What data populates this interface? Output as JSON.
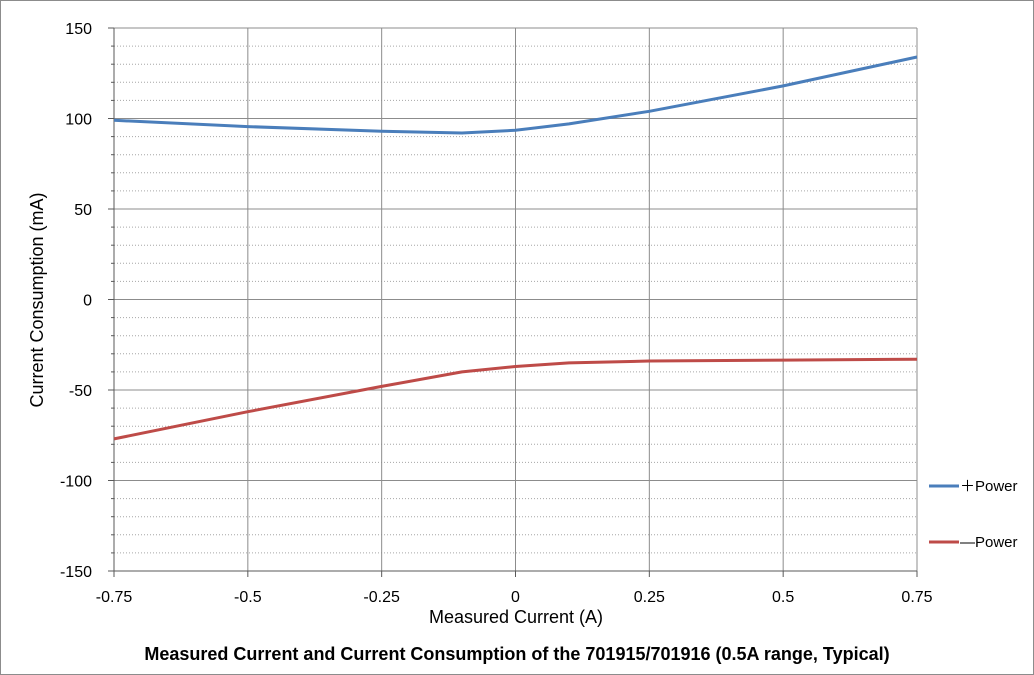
{
  "chart_data": {
    "type": "line",
    "title": "Measured Current and Current Consumption of the 701915/701916 (0.5A range, Typical)",
    "xlabel": "Measured Current (A)",
    "ylabel": "Current Consumption (mA)",
    "xlim": [
      -0.75,
      0.75
    ],
    "ylim": [
      -150,
      150
    ],
    "x_ticks": [
      -0.75,
      -0.5,
      -0.25,
      0,
      0.25,
      0.5,
      0.75
    ],
    "x_tick_labels": [
      "-0.75",
      "-0.5",
      "-0.25",
      "0",
      "0.25",
      "0.5",
      "0.75"
    ],
    "y_ticks": [
      150,
      100,
      50,
      0,
      -50,
      -100,
      -150
    ],
    "y_tick_labels": [
      "150",
      "100",
      "50",
      "0",
      "-50",
      "-100",
      "-150"
    ],
    "y_minor_step": 10,
    "grid": true,
    "legend_position": "right",
    "series": [
      {
        "name": "＋Power",
        "color": "#4a7ebb",
        "x": [
          -0.75,
          -0.5,
          -0.25,
          -0.1,
          0,
          0.1,
          0.25,
          0.5,
          0.75
        ],
        "y": [
          99,
          95.5,
          93,
          92,
          93.5,
          97,
          104,
          118,
          134
        ]
      },
      {
        "name": "—Power",
        "color": "#be4b48",
        "x": [
          -0.75,
          -0.5,
          -0.25,
          -0.1,
          0,
          0.1,
          0.25,
          0.5,
          0.75
        ],
        "y": [
          -77,
          -62,
          -48,
          -40,
          -37,
          -35,
          -34,
          -33.5,
          -33
        ]
      }
    ]
  }
}
